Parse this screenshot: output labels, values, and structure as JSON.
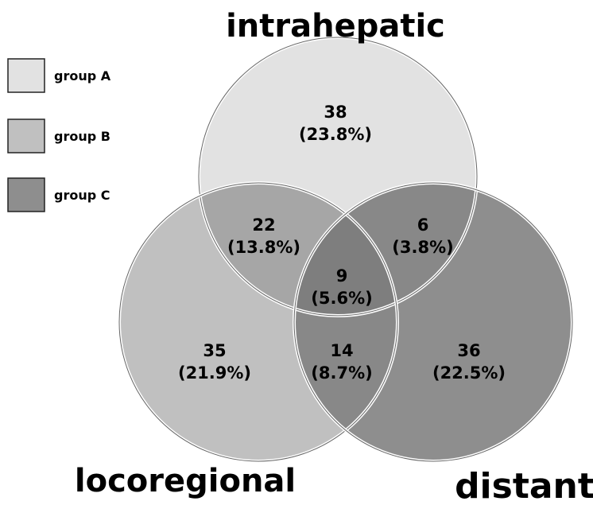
{
  "sets": {
    "intrahepatic": "intrahepatic",
    "locoregional": "locoregional",
    "distant": "distant"
  },
  "legend": [
    {
      "label": "group A",
      "color": "#e2e2e2"
    },
    {
      "label": "group B",
      "color": "#c0c0c0"
    },
    {
      "label": "group C",
      "color": "#8e8e8e"
    }
  ],
  "regions": {
    "intrahepatic_only": {
      "count": "38",
      "pct": "(23.8%)"
    },
    "intra_loco": {
      "count": "22",
      "pct": "(13.8%)"
    },
    "intra_distant": {
      "count": "6",
      "pct": "(3.8%)"
    },
    "all_three": {
      "count": "9",
      "pct": "(5.6%)"
    },
    "locoregional_only": {
      "count": "35",
      "pct": "(21.9%)"
    },
    "loco_distant": {
      "count": "14",
      "pct": "(8.7%)"
    },
    "distant_only": {
      "count": "36",
      "pct": "(22.5%)"
    }
  },
  "colors": {
    "group_a": "#e2e2e2",
    "group_b": "#c0c0c0",
    "group_c": "#8e8e8e",
    "overlap_ab": "#a6a6a6",
    "overlap_abc": "#7e7e7e",
    "overlap_bc": "#888888"
  }
}
